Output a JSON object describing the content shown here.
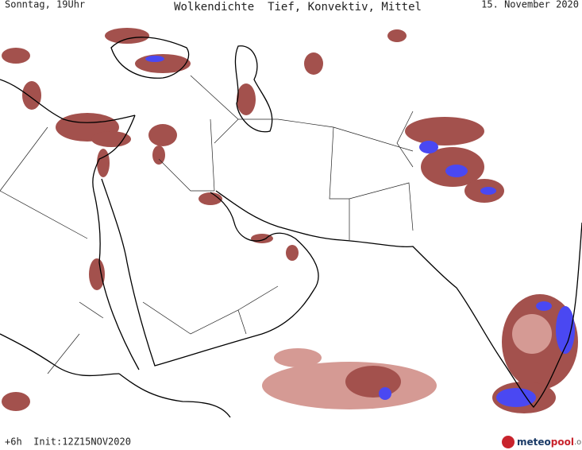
{
  "header": {
    "left": "Sonntag, 19Uhr",
    "title": "Wolkendichte  Tief, Konvektiv, Mittel",
    "date": "15. November 2020"
  },
  "footer": {
    "init": "+6h  Init:12Z15NOV2020",
    "logo": [
      "meteo",
      "pool",
      ".org"
    ]
  }
}
